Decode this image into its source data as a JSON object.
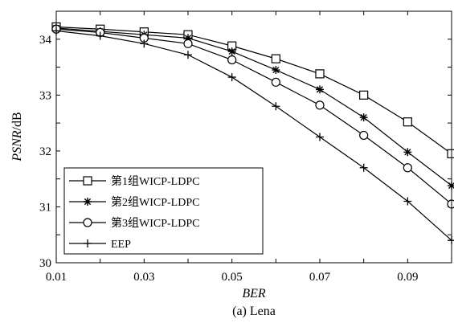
{
  "chart_data": {
    "type": "line",
    "title": "",
    "caption": "(a) Lena",
    "xlabel": "BER",
    "ylabel_italic": "PSNR",
    "ylabel_unit": "/dB",
    "xlim": [
      0.01,
      0.1
    ],
    "ylim": [
      30,
      34.5
    ],
    "xticks": [
      "0.01",
      "0.03",
      "0.05",
      "0.07",
      "0.09"
    ],
    "yticks": [
      "30",
      "31",
      "32",
      "33",
      "34"
    ],
    "x": [
      0.01,
      0.02,
      0.03,
      0.04,
      0.05,
      0.06,
      0.07,
      0.08,
      0.09,
      0.1
    ],
    "grid": false,
    "legend_position": "bottom-left",
    "series": [
      {
        "name": "第1组WICP-LDPC",
        "marker": "square",
        "values": [
          34.22,
          34.18,
          34.13,
          34.08,
          33.88,
          33.65,
          33.38,
          33.0,
          32.52,
          31.95
        ]
      },
      {
        "name": "第2组WICP-LDPC",
        "marker": "star",
        "values": [
          34.2,
          34.14,
          34.08,
          34.02,
          33.78,
          33.45,
          33.1,
          32.6,
          31.98,
          31.38
        ]
      },
      {
        "name": "第3组WICP-LDPC",
        "marker": "circle",
        "values": [
          34.18,
          34.12,
          34.02,
          33.92,
          33.63,
          33.23,
          32.82,
          32.28,
          31.7,
          31.05
        ]
      },
      {
        "name": "EEP",
        "marker": "plus",
        "values": [
          34.15,
          34.06,
          33.92,
          33.72,
          33.32,
          32.8,
          32.25,
          31.7,
          31.1,
          30.4
        ]
      }
    ]
  }
}
